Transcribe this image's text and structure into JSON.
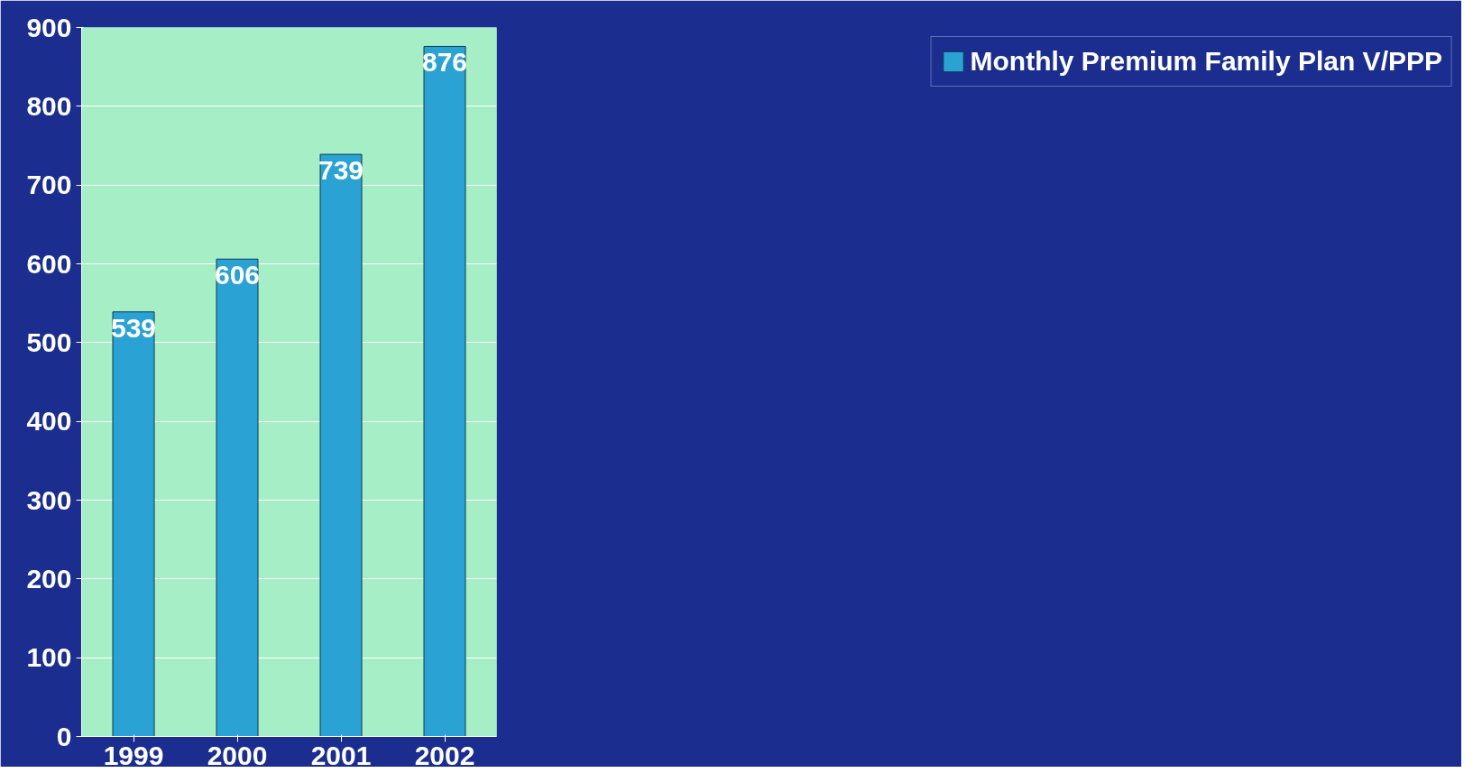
{
  "chart_data": {
    "type": "bar",
    "categories": [
      "1999",
      "2000",
      "2001",
      "2002"
    ],
    "series": [
      {
        "name": "Monthly Premium Family Plan V/PPP",
        "color": "#2aa3d4",
        "values": [
          539,
          606,
          739,
          876
        ]
      }
    ],
    "ylim": [
      0,
      900
    ],
    "yticks": [
      0,
      100,
      200,
      300,
      400,
      500,
      600,
      700,
      800,
      900
    ],
    "grid": "y",
    "legend": "right",
    "data_labels": true
  }
}
